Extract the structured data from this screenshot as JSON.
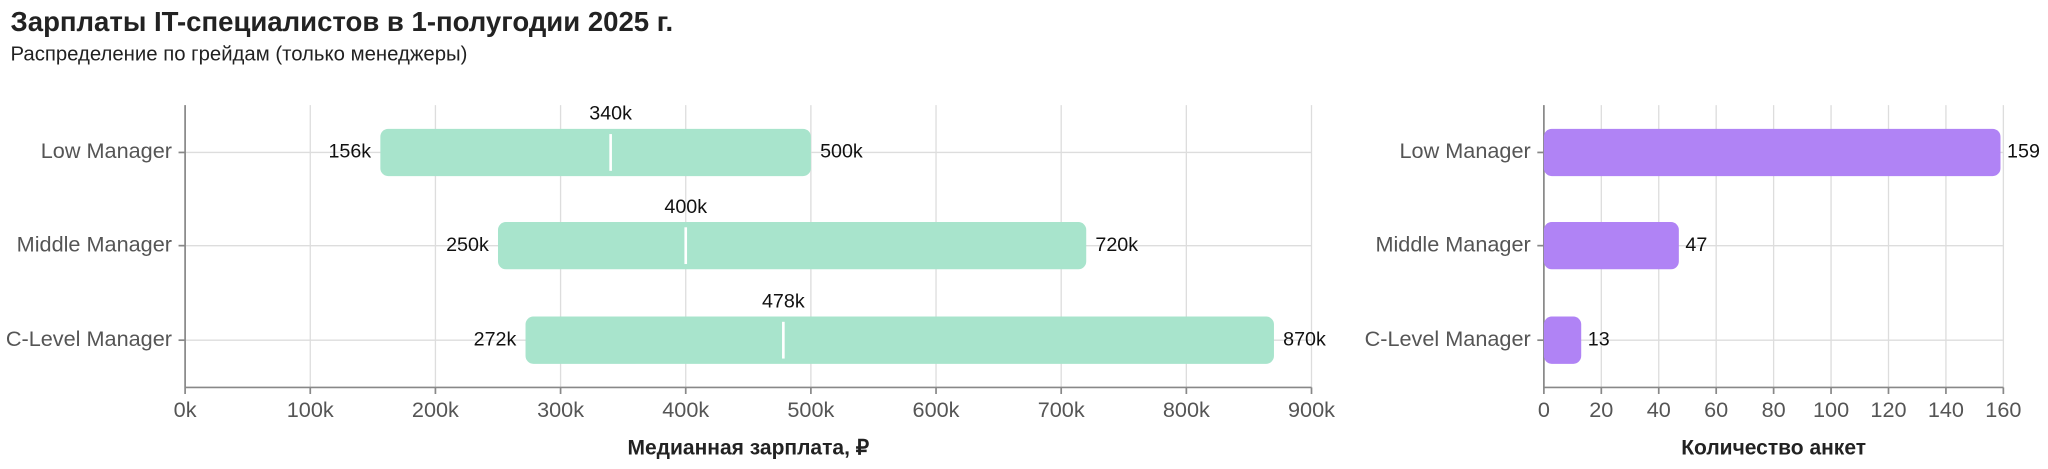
{
  "chart_data": [
    {
      "type": "range",
      "title": "Зарплаты IT-специалистов в 1-полугодии 2025 г.",
      "subtitle": "Распределение по грейдам (только менеджеры)",
      "categories": [
        "Low Manager",
        "Middle Manager",
        "C-Level Manager"
      ],
      "start_values": [
        156000,
        250000,
        272000
      ],
      "start_labels": [
        "156k",
        "250k",
        "272k"
      ],
      "median_values": [
        340000,
        400000,
        478000
      ],
      "median_labels": [
        "340k",
        "400k",
        "478k"
      ],
      "end_values": [
        500000,
        720000,
        870000
      ],
      "end_labels": [
        "500k",
        "720k",
        "870k"
      ],
      "color": "#a8e4cc",
      "median_color": "#ffffff",
      "x_label": "Медианная зарплата, ₽",
      "xlim": [
        0,
        900000
      ],
      "xticks": [
        {
          "value": 0,
          "label": "0k"
        },
        {
          "value": 100000,
          "label": "100k"
        },
        {
          "value": 200000,
          "label": "200k"
        },
        {
          "value": 300000,
          "label": "300k"
        },
        {
          "value": 400000,
          "label": "400k"
        },
        {
          "value": 500000,
          "label": "500k"
        },
        {
          "value": 600000,
          "label": "600k"
        },
        {
          "value": 700000,
          "label": "700k"
        },
        {
          "value": 800000,
          "label": "800k"
        },
        {
          "value": 900000,
          "label": "900k"
        }
      ],
      "grid": true
    },
    {
      "type": "bar",
      "categories": [
        "Low Manager",
        "Middle Manager",
        "C-Level Manager"
      ],
      "values": [
        159,
        47,
        13
      ],
      "color": "#b083f5",
      "x_label": "Количество анкет",
      "xlim": [
        0,
        160
      ],
      "xticks": [
        0,
        20,
        40,
        60,
        80,
        100,
        120,
        140,
        160
      ],
      "grid": true
    }
  ]
}
